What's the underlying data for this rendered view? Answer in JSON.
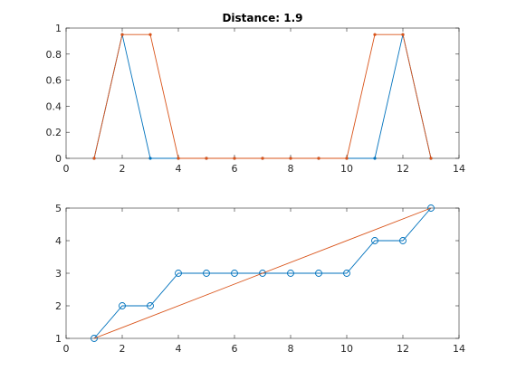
{
  "colors": {
    "blue": "#0072BD",
    "orange": "#D95319"
  },
  "chart_data": [
    {
      "type": "line",
      "title": "Distance: 1.9",
      "xlim": [
        0,
        14
      ],
      "ylim": [
        0,
        1
      ],
      "xticks": [
        0,
        2,
        4,
        6,
        8,
        10,
        12,
        14
      ],
      "yticks": [
        0,
        0.2,
        0.4,
        0.6,
        0.8,
        1
      ],
      "grid": false,
      "series": [
        {
          "color": "#0072BD",
          "marker": "dot",
          "x": [
            1,
            2,
            3,
            4,
            5,
            6,
            7,
            8,
            9,
            10,
            11,
            12,
            13
          ],
          "y": [
            0,
            0.95,
            0,
            0,
            0,
            0,
            0,
            0,
            0,
            0,
            0,
            0.95,
            0
          ]
        },
        {
          "color": "#D95319",
          "marker": "dot",
          "x": [
            1,
            2,
            3,
            4,
            5,
            6,
            7,
            8,
            9,
            10,
            11,
            12,
            13
          ],
          "y": [
            0,
            0.95,
            0.95,
            0,
            0,
            0,
            0,
            0,
            0,
            0,
            0.95,
            0.95,
            0
          ]
        }
      ]
    },
    {
      "type": "line",
      "title": "",
      "xlim": [
        0,
        14
      ],
      "ylim": [
        1,
        5
      ],
      "xticks": [
        0,
        2,
        4,
        6,
        8,
        10,
        12,
        14
      ],
      "yticks": [
        1,
        2,
        3,
        4,
        5
      ],
      "grid": false,
      "series": [
        {
          "color": "#0072BD",
          "marker": "circle",
          "x": [
            1,
            2,
            3,
            4,
            5,
            6,
            7,
            8,
            9,
            10,
            11,
            12,
            13
          ],
          "y": [
            1,
            2,
            2,
            3,
            3,
            3,
            3,
            3,
            3,
            3,
            4,
            4,
            5
          ]
        },
        {
          "color": "#D95319",
          "marker": "none",
          "x": [
            1,
            13
          ],
          "y": [
            1,
            5
          ]
        }
      ]
    }
  ]
}
